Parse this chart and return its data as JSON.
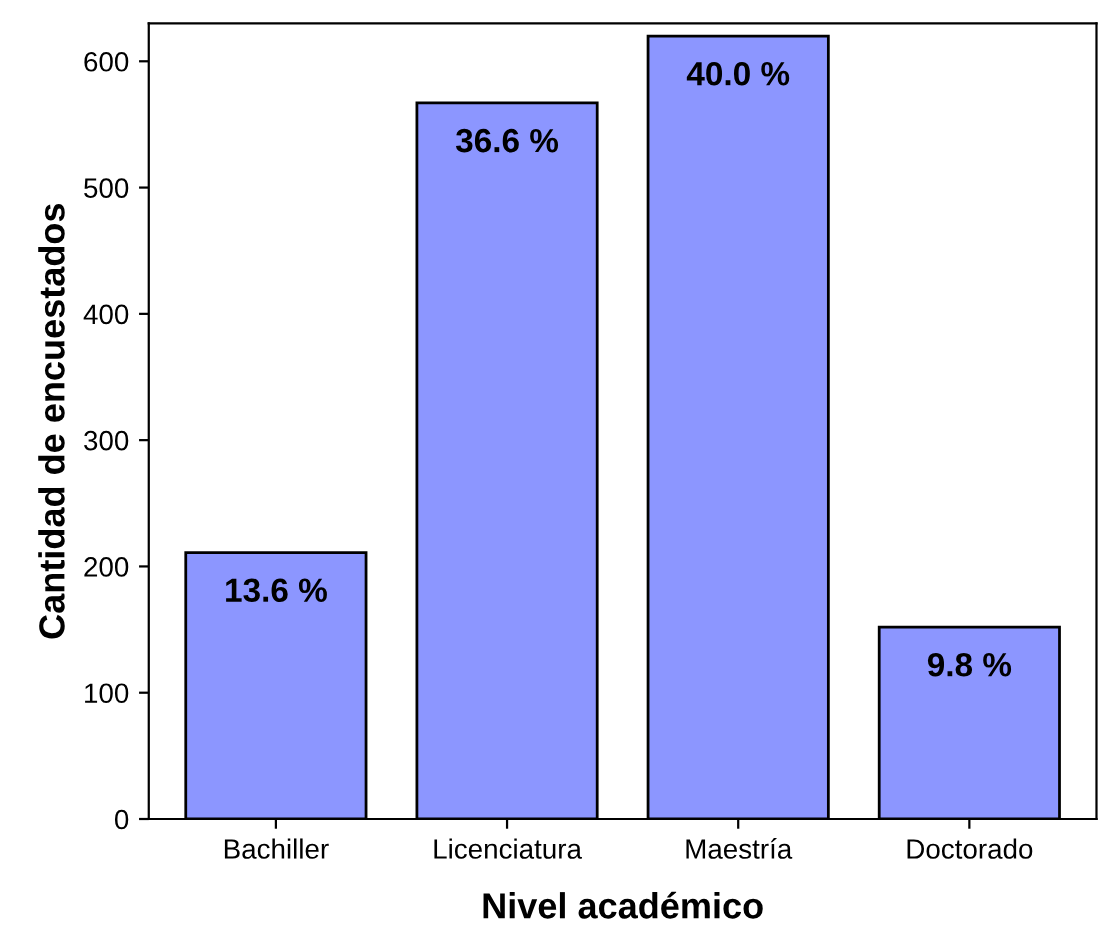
{
  "chart_data": {
    "type": "bar",
    "xlabel": "Nivel académico",
    "ylabel": "Cantidad de encuestados",
    "categories": [
      "Bachiller",
      "Licenciatura",
      "Maestría",
      "Doctorado"
    ],
    "values": [
      211,
      567,
      620,
      152
    ],
    "annotations": [
      {
        "text": "13.6 %",
        "x": "Bachiller",
        "y": 211
      },
      {
        "text": "36.6 %",
        "x": "Licenciatura",
        "y": 567
      },
      {
        "text": "40.0 %",
        "x": "Maestría",
        "y": 620
      },
      {
        "text": "9.8 %",
        "x": "Doctorado",
        "y": 152
      }
    ],
    "color": "#8c96ff",
    "ylim": [
      0,
      630
    ],
    "yticks": [
      0,
      100,
      200,
      300,
      400,
      500,
      600
    ],
    "grid": false,
    "legend": false
  }
}
